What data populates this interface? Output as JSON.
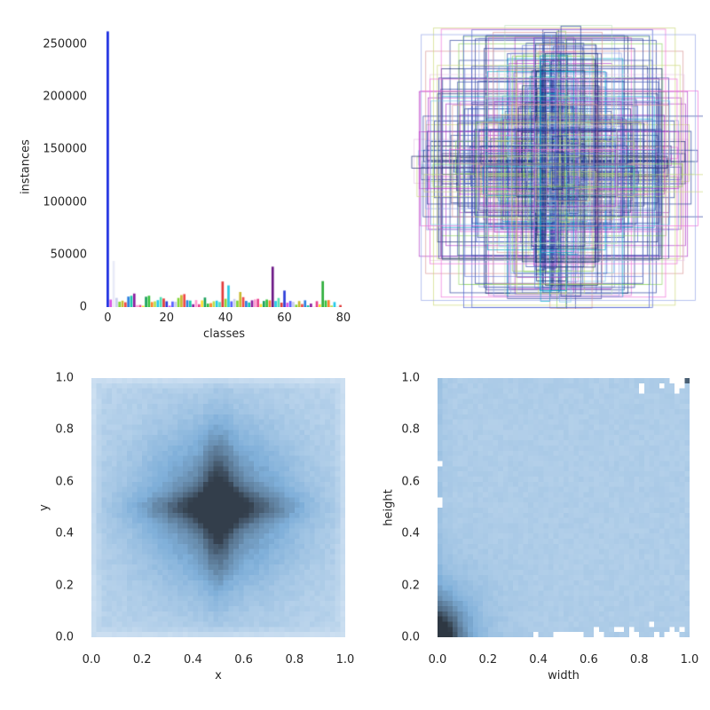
{
  "figure": {
    "background": "#ffffff"
  },
  "chart_data": [
    {
      "id": "class_histogram",
      "type": "bar",
      "xlabel": "classes",
      "ylabel": "instances",
      "xticks": [
        0,
        20,
        40,
        60,
        80
      ],
      "yticks": [
        0,
        50000,
        100000,
        150000,
        200000,
        250000
      ],
      "xlim": [
        -4.95,
        83.95
      ],
      "ylim": [
        0,
        267000
      ],
      "num_classes": 80,
      "values": [
        262465,
        7113,
        43867,
        8725,
        5135,
        6069,
        4571,
        9973,
        10759,
        12884,
        1865,
        1983,
        1285,
        9838,
        10806,
        4768,
        5508,
        6587,
        9509,
        8147,
        5513,
        1294,
        5303,
        5131,
        8720,
        11431,
        12354,
        6496,
        6192,
        2682,
        6646,
        2685,
        6347,
        9076,
        3276,
        3747,
        5543,
        6126,
        4812,
        24342,
        7913,
        20650,
        5479,
        7770,
        6165,
        14358,
        9458,
        5851,
        4373,
        6399,
        7308,
        7852,
        2918,
        5821,
        7179,
        6353,
        38491,
        5779,
        8652,
        4192,
        15714,
        4157,
        5805,
        4970,
        2262,
        5703,
        2855,
        6434,
        1673,
        3334,
        225,
        5610,
        2637,
        24715,
        6334,
        6613,
        1481,
        4793,
        198,
        1954
      ],
      "bar_color_palette": [
        "#e8418c",
        "#35c13b",
        "#21c8e8",
        "#2a3bd8",
        "#c9cdee",
        "#f04848",
        "#8a1b9e",
        "#ffdd30",
        "#ff7f2a",
        "#53e0b0",
        "#d94fe0",
        "#7fd435",
        "#2a7de0",
        "#ff9ad0",
        "#18a05a",
        "#b8e04a",
        "#e03a3a",
        "#5560ff",
        "#c7b92e",
        "#16c8a8"
      ],
      "bar_color_overrides": {
        "0": "#1527e0",
        "2": "#e9ebf7",
        "40": "#8fd435",
        "41": "#25c8e0",
        "56": "#6b1685",
        "73": "#2fae3c"
      }
    },
    {
      "id": "bounding_boxes_overlay",
      "type": "boxes-overlay",
      "description": "All dataset bounding boxes drawn centered on (0.5, 0.5); dense cluster of small boxes in the middle, a few near full-frame",
      "box_count": 400,
      "seed": 11,
      "line_palette": [
        "#2a3f9e",
        "#4a5fd0",
        "#16246e",
        "#6f7fd8",
        "#b23ec8",
        "#ef6fd8",
        "#00aecb",
        "#79ccee",
        "#8fd464",
        "#ccd97d",
        "#d99a9a",
        "#3b4fb0",
        "#95a6e8",
        "#2a3f9e",
        "#16246e",
        "#bfe3bf",
        "#e8c9e8"
      ]
    },
    {
      "id": "xy_histogram",
      "type": "heatmap",
      "xlabel": "x",
      "ylabel": "y",
      "xticks": [
        "0.0",
        "0.2",
        "0.4",
        "0.6",
        "0.8",
        "1.0"
      ],
      "yticks": [
        "0.0",
        "0.2",
        "0.4",
        "0.6",
        "0.8",
        "1.0"
      ],
      "bins": 50,
      "xlim": [
        0,
        1
      ],
      "ylim": [
        0,
        1
      ],
      "pattern": "2D histogram of box centers: dark cross/plus shape centered at (0.5, 0.5), darkest at the center, fading to light blue toward edges",
      "center": [
        0.5,
        0.5
      ],
      "colormap_stops": [
        [
          0,
          "#dce9f6"
        ],
        [
          0.45,
          "#7fafd9"
        ],
        [
          1,
          "#333e4b"
        ]
      ],
      "seed": 5
    },
    {
      "id": "wh_histogram",
      "type": "heatmap",
      "xlabel": "width",
      "ylabel": "height",
      "xticks": [
        "0.0",
        "0.2",
        "0.4",
        "0.6",
        "0.8",
        "1.0"
      ],
      "yticks": [
        "0.0",
        "0.2",
        "0.4",
        "0.6",
        "0.8",
        "1.0"
      ],
      "bins": 50,
      "xlim": [
        0,
        1
      ],
      "ylim": [
        0,
        1
      ],
      "pattern": "2D histogram of box sizes: most boxes are small, dark concentration near (0.05, 0.05) fading into uniform light blue; scattered empty bins along bottom edge and near top-right; one dark bin at (1.0, 1.0)",
      "mode": [
        0.03,
        0.04
      ],
      "colormap_stops": [
        [
          0,
          "#dce9f6"
        ],
        [
          0.45,
          "#7fafd9"
        ],
        [
          1,
          "#2e3843"
        ]
      ],
      "seed": 9
    }
  ]
}
